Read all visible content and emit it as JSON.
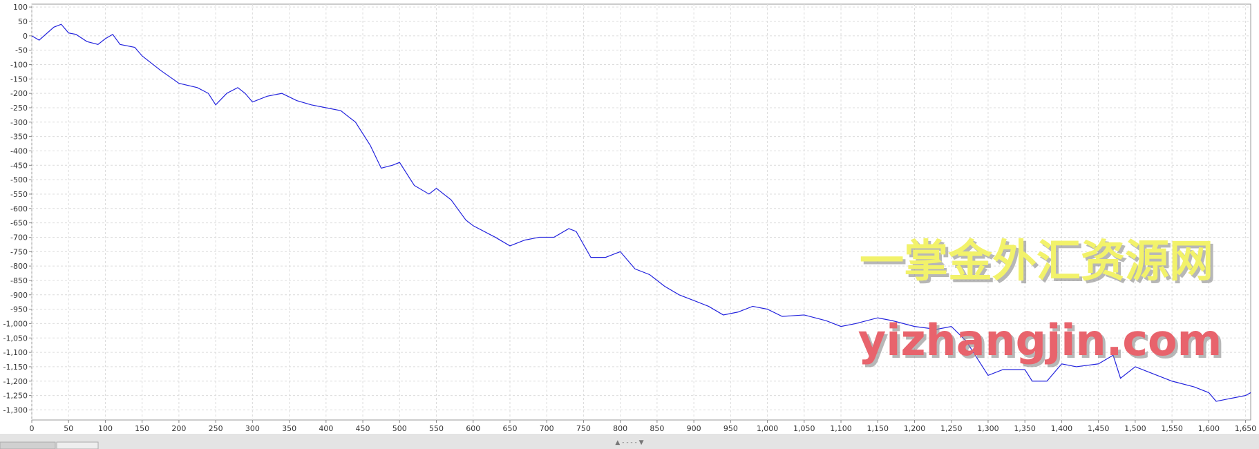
{
  "chart_data": {
    "type": "line",
    "annotations": [
      "一掌金外汇资源网",
      "yizhangjin.com"
    ],
    "x": [
      0,
      10,
      30,
      40,
      50,
      60,
      75,
      90,
      100,
      110,
      120,
      140,
      150,
      175,
      200,
      225,
      240,
      250,
      265,
      280,
      290,
      300,
      320,
      340,
      360,
      380,
      400,
      420,
      440,
      460,
      475,
      490,
      500,
      520,
      540,
      550,
      570,
      590,
      600,
      630,
      650,
      670,
      690,
      710,
      730,
      740,
      760,
      780,
      800,
      820,
      840,
      860,
      880,
      900,
      920,
      940,
      960,
      980,
      1000,
      1020,
      1050,
      1080,
      1100,
      1120,
      1150,
      1170,
      1200,
      1230,
      1250,
      1270,
      1300,
      1320,
      1350,
      1360,
      1380,
      1400,
      1420,
      1450,
      1470,
      1480,
      1500,
      1520,
      1550,
      1580,
      1600,
      1610,
      1630,
      1650,
      1657
    ],
    "series": [
      {
        "color": "#2222dd",
        "values": [
          0,
          -15,
          30,
          40,
          10,
          5,
          -20,
          -30,
          -10,
          5,
          -30,
          -40,
          -70,
          -120,
          -165,
          -180,
          -200,
          -240,
          -200,
          -180,
          -200,
          -230,
          -210,
          -200,
          -225,
          -240,
          -250,
          -260,
          -300,
          -380,
          -460,
          -450,
          -440,
          -520,
          -550,
          -530,
          -570,
          -640,
          -660,
          -700,
          -730,
          -710,
          -700,
          -700,
          -670,
          -680,
          -770,
          -770,
          -750,
          -810,
          -830,
          -870,
          -900,
          -920,
          -940,
          -970,
          -960,
          -940,
          -950,
          -975,
          -970,
          -990,
          -1010,
          -1000,
          -980,
          -990,
          -1010,
          -1020,
          -1010,
          -1060,
          -1180,
          -1160,
          -1160,
          -1200,
          -1200,
          -1140,
          -1150,
          -1140,
          -1110,
          -1190,
          -1150,
          -1170,
          -1200,
          -1220,
          -1240,
          -1270,
          -1260,
          -1250,
          -1240
        ]
      }
    ],
    "xlim": [
      0,
      1657
    ],
    "ylim": [
      -1335,
      110
    ],
    "xticks": [
      0,
      50,
      100,
      150,
      200,
      250,
      300,
      350,
      400,
      450,
      500,
      550,
      600,
      650,
      700,
      750,
      800,
      850,
      900,
      950,
      {
        "value": 1000,
        "label": "1,000"
      },
      {
        "value": 1050,
        "label": "1,050"
      },
      {
        "value": 1100,
        "label": "1,100"
      },
      {
        "value": 1150,
        "label": "1,150"
      },
      {
        "value": 1200,
        "label": "1,200"
      },
      {
        "value": 1250,
        "label": "1,250"
      },
      {
        "value": 1300,
        "label": "1,300"
      },
      {
        "value": 1350,
        "label": "1,350"
      },
      {
        "value": 1400,
        "label": "1,400"
      },
      {
        "value": 1450,
        "label": "1,450"
      },
      {
        "value": 1500,
        "label": "1,500"
      },
      {
        "value": 1550,
        "label": "1,550"
      },
      {
        "value": 1600,
        "label": "1,600"
      },
      {
        "value": 1650,
        "label": "1,650"
      }
    ],
    "yticks": [
      100,
      50,
      0,
      -50,
      -100,
      -150,
      -200,
      -250,
      -300,
      -350,
      -400,
      -450,
      -500,
      -550,
      -600,
      -650,
      -700,
      -750,
      -800,
      -850,
      -900,
      -950,
      {
        "value": -1000,
        "label": "-1,000"
      },
      {
        "value": -1050,
        "label": "-1,050"
      },
      {
        "value": -1100,
        "label": "-1,100"
      },
      {
        "value": -1150,
        "label": "-1,150"
      },
      {
        "value": -1200,
        "label": "-1,200"
      },
      {
        "value": -1250,
        "label": "-1,250"
      },
      {
        "value": -1300,
        "label": "-1,300"
      }
    ],
    "grid": true
  }
}
